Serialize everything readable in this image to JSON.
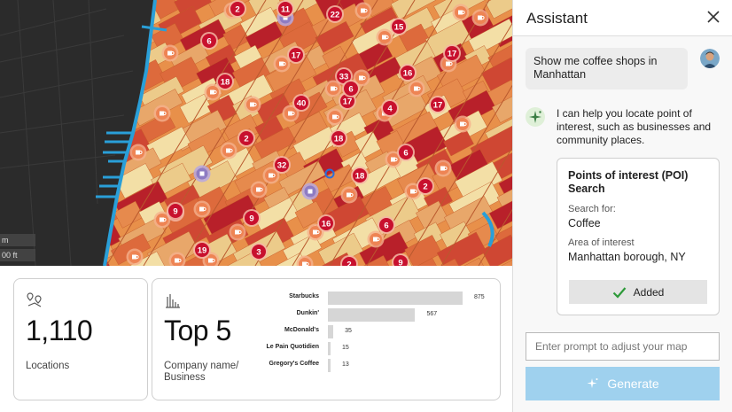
{
  "map": {
    "scale_labels": [
      "m",
      "00 ft"
    ],
    "clusters": [
      "11",
      "22",
      "15",
      "6",
      "17",
      "17",
      "16",
      "33",
      "18",
      "17",
      "6",
      "40",
      "4",
      "17",
      "2",
      "18",
      "6",
      "32",
      "18",
      "9",
      "2",
      "9",
      "9",
      "16",
      "6",
      "19",
      "3",
      "2",
      "9",
      "2"
    ]
  },
  "locations_card": {
    "value": "1,110",
    "label": "Locations"
  },
  "top_card": {
    "value": "Top 5",
    "label_line1": "Company name/",
    "label_line2": "Business"
  },
  "chart_data": {
    "type": "bar",
    "orientation": "horizontal",
    "categories": [
      "Starbucks",
      "Dunkin'",
      "McDonald's",
      "Le Pain Quotidien",
      "Gregory's Coffee"
    ],
    "values": [
      875,
      567,
      35,
      15,
      13
    ]
  },
  "assistant": {
    "title": "Assistant",
    "user_message": "Show me coffee shops in Manhattan",
    "ai_message": "I can help you locate point of interest, such as businesses and community places.",
    "poi": {
      "title": "Points of interest (POI) Search",
      "search_label": "Search for:",
      "search_value": "Coffee",
      "area_label": "Area of interest",
      "area_value": "Manhattan borough, NY",
      "added_label": "Added"
    },
    "prompt_placeholder": "Enter prompt to adjust your map",
    "generate_label": "Generate"
  },
  "colors": {
    "accent_light_blue": "#9fd1ee",
    "cluster_red": "#c8102e",
    "coffee_orange": "#f08a5d",
    "other_purple": "#8e7cc3",
    "water_dark": "#2b2b2b",
    "shoreline_blue": "#2a9fd8"
  },
  "icons": [
    "coffee-icon",
    "shop-icon",
    "restaurant-icon",
    "location-pins-icon",
    "bar-chart-icon",
    "close-icon",
    "sparkle-icon",
    "check-icon"
  ]
}
